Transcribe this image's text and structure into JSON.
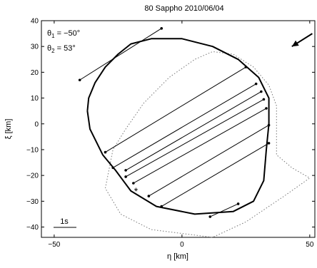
{
  "chart_data": {
    "type": "line",
    "title": "80 Sappho   2010/06/04",
    "xlabel": "η [km]",
    "ylabel": "ξ [km]",
    "xlim": [
      -55,
      52
    ],
    "ylim": [
      -44,
      40
    ],
    "xticks": [
      -50,
      0,
      50
    ],
    "yticks": [
      -40,
      -30,
      -20,
      -10,
      0,
      10,
      20,
      30,
      40
    ],
    "xtick_labels": [
      "−50",
      "0",
      "50"
    ],
    "ytick_labels": [
      "−40",
      "−30",
      "−20",
      "−10",
      "0",
      "10",
      "20",
      "30",
      "40"
    ],
    "grid": false,
    "annotations": {
      "theta1_symbol": "θ",
      "theta1_sub": "1",
      "theta1_value": " = −50°",
      "theta2_symbol": "θ",
      "theta2_sub": "2",
      "theta2_value": " = 53°",
      "scale_bar_label": "1s"
    },
    "profile_outline": [
      [
        -37,
        5
      ],
      [
        -36.5,
        10
      ],
      [
        -34,
        16
      ],
      [
        -30,
        22
      ],
      [
        -25,
        27
      ],
      [
        -20,
        31
      ],
      [
        -12,
        33
      ],
      [
        0,
        33
      ],
      [
        12,
        30
      ],
      [
        22,
        25
      ],
      [
        30,
        18
      ],
      [
        34,
        10
      ],
      [
        34,
        0
      ],
      [
        33,
        -10
      ],
      [
        32,
        -22
      ],
      [
        28,
        -30
      ],
      [
        20,
        -34
      ],
      [
        5,
        -35
      ],
      [
        -10,
        -32
      ],
      [
        -20,
        -26
      ],
      [
        -26,
        -18
      ],
      [
        -31,
        -12
      ],
      [
        -36,
        -2
      ],
      [
        -37,
        5
      ]
    ],
    "alt_outline": [
      [
        -28,
        -15
      ],
      [
        -27,
        -10
      ],
      [
        -22,
        -2
      ],
      [
        -15,
        8
      ],
      [
        -5,
        18
      ],
      [
        5,
        25
      ],
      [
        12,
        28
      ],
      [
        20,
        27
      ],
      [
        28,
        22
      ],
      [
        34,
        15
      ],
      [
        37,
        7
      ],
      [
        37,
        -3
      ],
      [
        37,
        -12
      ],
      [
        43,
        -17
      ],
      [
        50,
        -21
      ],
      [
        40,
        -28
      ],
      [
        25,
        -38
      ],
      [
        12,
        -44
      ],
      [
        -12,
        -41
      ],
      [
        -24,
        -35
      ],
      [
        -30,
        -25
      ],
      [
        -28,
        -15
      ]
    ],
    "chords": [
      {
        "x": [
          -40,
          -8
        ],
        "y": [
          17,
          37
        ]
      },
      {
        "x": [
          -30,
          25
        ],
        "y": [
          -11,
          22
        ]
      },
      {
        "x": [
          -27,
          29
        ],
        "y": [
          -17,
          15.5
        ]
      },
      {
        "x": [
          -22,
          31
        ],
        "y": [
          -18,
          12.5
        ]
      },
      {
        "x": [
          -22,
          32
        ],
        "y": [
          -20.5,
          9.5
        ]
      },
      {
        "x": [
          -19,
          33
        ],
        "y": [
          -23,
          6
        ]
      },
      {
        "x": [
          -13,
          34
        ],
        "y": [
          -28,
          -0.5
        ]
      },
      {
        "x": [
          -8,
          34
        ],
        "y": [
          -32,
          -7.5
        ]
      },
      {
        "x": [
          11,
          22
        ],
        "y": [
          -36,
          -31
        ]
      }
    ],
    "marker_star": {
      "x": -18,
      "y": -25.5
    },
    "arrow": {
      "from": [
        51,
        35
      ],
      "to": [
        43,
        30
      ]
    }
  }
}
